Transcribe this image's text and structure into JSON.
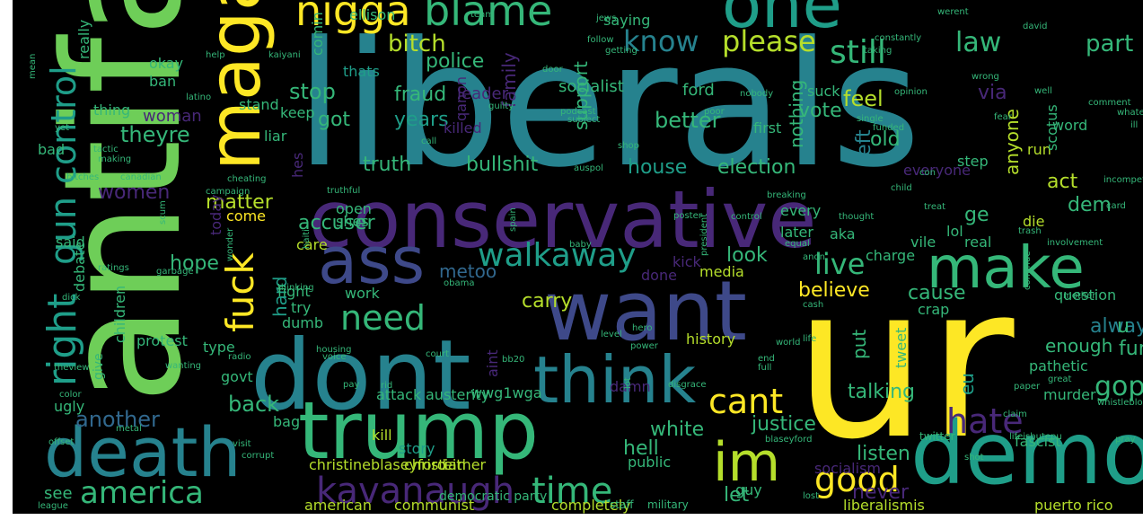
{
  "title": "",
  "palette": {
    "background": "#000000",
    "yellow": "#fde725",
    "lime": "#b5de2b",
    "green": "#6ece58",
    "teal_green": "#35b779",
    "teal": "#1f9e89",
    "cyan_blue": "#26828e",
    "blue": "#31688e",
    "indigo": "#3e4989",
    "purple": "#482878",
    "dark_purple": "#440154"
  },
  "words": [
    {
      "text": "liberals",
      "color": "#26828e"
    },
    {
      "text": "ur",
      "color": "#fde725"
    },
    {
      "text": "antifa",
      "color": "#6ece58"
    },
    {
      "text": "conservative",
      "color": "#482878"
    },
    {
      "text": "dont",
      "color": "#26828e"
    },
    {
      "text": "trump",
      "color": "#35b779"
    },
    {
      "text": "want",
      "color": "#3e4989"
    },
    {
      "text": "death",
      "color": "#26828e"
    },
    {
      "text": "democ",
      "color": "#1f9e89"
    },
    {
      "text": "maga",
      "color": "#fde725"
    },
    {
      "text": "think",
      "color": "#26828e"
    },
    {
      "text": "make",
      "color": "#35b779"
    },
    {
      "text": "ass",
      "color": "#3e4989"
    },
    {
      "text": "one",
      "color": "#1f9e89"
    },
    {
      "text": "im",
      "color": "#b5de2b"
    },
    {
      "text": "nigga",
      "color": "#fde725"
    },
    {
      "text": "blame",
      "color": "#35b779"
    },
    {
      "text": "right",
      "color": "#1f9e89"
    },
    {
      "text": "gun",
      "color": "#1f9e89"
    },
    {
      "text": "control",
      "color": "#1f9e89"
    },
    {
      "text": "fuck",
      "color": "#fde725"
    },
    {
      "text": "kavanaugh",
      "color": "#482878"
    },
    {
      "text": "time",
      "color": "#35b779"
    },
    {
      "text": "america",
      "color": "#35b779"
    },
    {
      "text": "good",
      "color": "#fde725"
    },
    {
      "text": "need",
      "color": "#35b779"
    },
    {
      "text": "walkaway",
      "color": "#1f9e89"
    },
    {
      "text": "cant",
      "color": "#fde725"
    },
    {
      "text": "hate",
      "color": "#482878"
    },
    {
      "text": "live",
      "color": "#35b779"
    },
    {
      "text": "know",
      "color": "#26828e"
    },
    {
      "text": "please",
      "color": "#b5de2b"
    },
    {
      "text": "still",
      "color": "#35b779"
    },
    {
      "text": "law",
      "color": "#35b779"
    },
    {
      "text": "part",
      "color": "#35b779"
    },
    {
      "text": "bitch",
      "color": "#b5de2b"
    },
    {
      "text": "police",
      "color": "#35b779"
    },
    {
      "text": "better",
      "color": "#35b779"
    },
    {
      "text": "stop",
      "color": "#35b779"
    },
    {
      "text": "fraud",
      "color": "#35b779"
    },
    {
      "text": "years",
      "color": "#1f9e89"
    },
    {
      "text": "got",
      "color": "#35b779"
    },
    {
      "text": "feel",
      "color": "#b5de2b"
    },
    {
      "text": "truth",
      "color": "#35b779"
    },
    {
      "text": "bullshit",
      "color": "#35b779"
    },
    {
      "text": "house",
      "color": "#1f9e89"
    },
    {
      "text": "election",
      "color": "#35b779"
    },
    {
      "text": "theyre",
      "color": "#35b779"
    },
    {
      "text": "women",
      "color": "#482878"
    },
    {
      "text": "matter",
      "color": "#b5de2b"
    },
    {
      "text": "accuser",
      "color": "#35b779"
    },
    {
      "text": "hope",
      "color": "#35b779"
    },
    {
      "text": "hard",
      "color": "#1f9e89"
    },
    {
      "text": "look",
      "color": "#35b779"
    },
    {
      "text": "metoo",
      "color": "#31688e"
    },
    {
      "text": "carry",
      "color": "#b5de2b"
    },
    {
      "text": "believe",
      "color": "#fde725"
    },
    {
      "text": "cause",
      "color": "#35b779"
    },
    {
      "text": "back",
      "color": "#35b779"
    },
    {
      "text": "another",
      "color": "#31688e"
    },
    {
      "text": "white",
      "color": "#35b779"
    },
    {
      "text": "justice",
      "color": "#35b779"
    },
    {
      "text": "hell",
      "color": "#35b779"
    },
    {
      "text": "listen",
      "color": "#35b779"
    },
    {
      "text": "never",
      "color": "#482878"
    },
    {
      "text": "let",
      "color": "#35b779"
    },
    {
      "text": "see",
      "color": "#35b779"
    },
    {
      "text": "american",
      "color": "#b5de2b"
    },
    {
      "text": "communist",
      "color": "#b5de2b"
    },
    {
      "text": "completely",
      "color": "#b5de2b"
    },
    {
      "text": "puerto rico",
      "color": "#b5de2b"
    },
    {
      "text": "liberalismis",
      "color": "#b5de2b"
    },
    {
      "text": "christineblaseyford",
      "color": "#b5de2b"
    },
    {
      "text": "christian",
      "color": "#b5de2b"
    },
    {
      "text": "either",
      "color": "#b5de2b"
    },
    {
      "text": "kill",
      "color": "#b5de2b"
    },
    {
      "text": "story",
      "color": "#1f9e89"
    },
    {
      "text": "eu",
      "color": "#1f9e89"
    },
    {
      "text": "talking",
      "color": "#35b779"
    },
    {
      "text": "put",
      "color": "#35b779"
    },
    {
      "text": "enough",
      "color": "#35b779"
    },
    {
      "text": "always",
      "color": "#26828e"
    },
    {
      "text": "gop",
      "color": "#35b779"
    },
    {
      "text": "u",
      "color": "#35b779"
    },
    {
      "text": "fun",
      "color": "#35b779"
    },
    {
      "text": "ge",
      "color": "#35b779"
    },
    {
      "text": "dem",
      "color": "#35b779"
    },
    {
      "text": "act",
      "color": "#b5de2b"
    },
    {
      "text": "die",
      "color": "#b5de2b"
    },
    {
      "text": "run",
      "color": "#b5de2b"
    },
    {
      "text": "vote",
      "color": "#35b779"
    },
    {
      "text": "via",
      "color": "#482878"
    },
    {
      "text": "old",
      "color": "#35b779"
    },
    {
      "text": "left",
      "color": "#26828e"
    },
    {
      "text": "nothing",
      "color": "#35b779"
    },
    {
      "text": "anyone",
      "color": "#b5de2b"
    },
    {
      "text": "support",
      "color": "#35b779"
    },
    {
      "text": "family",
      "color": "#482878"
    },
    {
      "text": "socialist",
      "color": "#35b779"
    },
    {
      "text": "ford",
      "color": "#35b779"
    },
    {
      "text": "leader",
      "color": "#482878"
    },
    {
      "text": "woman",
      "color": "#482878"
    },
    {
      "text": "okay",
      "color": "#35b779"
    },
    {
      "text": "ban",
      "color": "#35b779"
    },
    {
      "text": "really",
      "color": "#35b779"
    },
    {
      "text": "thats",
      "color": "#1f9e89"
    },
    {
      "text": "stand",
      "color": "#35b779"
    },
    {
      "text": "comin",
      "color": "#35b779"
    },
    {
      "text": "saying",
      "color": "#35b779"
    },
    {
      "text": "ellison",
      "color": "#35b779"
    },
    {
      "text": "thing",
      "color": "#35b779"
    },
    {
      "text": "bad",
      "color": "#35b779"
    },
    {
      "text": "liar",
      "color": "#35b779"
    },
    {
      "text": "keep",
      "color": "#35b779"
    },
    {
      "text": "killed",
      "color": "#482878"
    },
    {
      "text": "qanon",
      "color": "#482878"
    },
    {
      "text": "first",
      "color": "#35b779"
    },
    {
      "text": "suck",
      "color": "#35b779"
    },
    {
      "text": "scotus",
      "color": "#35b779"
    },
    {
      "text": "word",
      "color": "#35b779"
    },
    {
      "text": "everyone",
      "color": "#482878"
    },
    {
      "text": "step",
      "color": "#35b779"
    },
    {
      "text": "come",
      "color": "#fde725"
    },
    {
      "text": "today",
      "color": "#482878"
    },
    {
      "text": "care",
      "color": "#b5de2b"
    },
    {
      "text": "said",
      "color": "#35b779"
    },
    {
      "text": "open",
      "color": "#35b779"
    },
    {
      "text": "shes",
      "color": "#35b779"
    },
    {
      "text": "every",
      "color": "#35b779"
    },
    {
      "text": "later",
      "color": "#35b779"
    },
    {
      "text": "aka",
      "color": "#35b779"
    },
    {
      "text": "lol",
      "color": "#35b779"
    },
    {
      "text": "charge",
      "color": "#35b779"
    },
    {
      "text": "vile",
      "color": "#35b779"
    },
    {
      "text": "real",
      "color": "#35b779"
    },
    {
      "text": "media",
      "color": "#b5de2b"
    },
    {
      "text": "done",
      "color": "#482878"
    },
    {
      "text": "kick",
      "color": "#482878"
    },
    {
      "text": "work",
      "color": "#35b779"
    },
    {
      "text": "fight",
      "color": "#35b779"
    },
    {
      "text": "try",
      "color": "#35b779"
    },
    {
      "text": "dumb",
      "color": "#35b779"
    },
    {
      "text": "protest",
      "color": "#35b779"
    },
    {
      "text": "type",
      "color": "#35b779"
    },
    {
      "text": "history",
      "color": "#b5de2b"
    },
    {
      "text": "tweet",
      "color": "#35b779"
    },
    {
      "text": "crap",
      "color": "#35b779"
    },
    {
      "text": "question",
      "color": "#35b779"
    },
    {
      "text": "pathetic",
      "color": "#35b779"
    },
    {
      "text": "murder",
      "color": "#35b779"
    },
    {
      "text": "fascist",
      "color": "#35b779"
    },
    {
      "text": "govt",
      "color": "#35b779"
    },
    {
      "text": "bag",
      "color": "#35b779"
    },
    {
      "text": "attack",
      "color": "#35b779"
    },
    {
      "text": "austerity",
      "color": "#35b779"
    },
    {
      "text": "wwg1wga",
      "color": "#35b779"
    },
    {
      "text": "damn",
      "color": "#482878"
    },
    {
      "text": "aint",
      "color": "#482878"
    },
    {
      "text": "ugly",
      "color": "#35b779"
    },
    {
      "text": "children",
      "color": "#35b779"
    },
    {
      "text": "debate",
      "color": "#35b779"
    },
    {
      "text": "give",
      "color": "#35b779"
    },
    {
      "text": "hes",
      "color": "#482878"
    },
    {
      "text": "public",
      "color": "#35b779"
    },
    {
      "text": "socialism",
      "color": "#482878"
    },
    {
      "text": "guy",
      "color": "#35b779"
    },
    {
      "text": "democratic party",
      "color": "#35b779"
    },
    {
      "text": "staff",
      "color": "#35b779"
    },
    {
      "text": "military",
      "color": "#35b779"
    },
    {
      "text": "league",
      "color": "#35b779"
    },
    {
      "text": "twitter",
      "color": "#35b779"
    },
    {
      "text": "blaseyford",
      "color": "#35b779"
    },
    {
      "text": "involvement",
      "color": "#35b779"
    },
    {
      "text": "cash",
      "color": "#35b779"
    },
    {
      "text": "end",
      "color": "#35b779"
    },
    {
      "text": "full",
      "color": "#35b779"
    },
    {
      "text": "hero",
      "color": "#35b779"
    },
    {
      "text": "level",
      "color": "#35b779"
    },
    {
      "text": "life",
      "color": "#35b779"
    },
    {
      "text": "world",
      "color": "#35b779"
    },
    {
      "text": "radio",
      "color": "#35b779"
    },
    {
      "text": "color",
      "color": "#35b779"
    },
    {
      "text": "theview",
      "color": "#35b779"
    },
    {
      "text": "wanting",
      "color": "#35b779"
    },
    {
      "text": "ratings",
      "color": "#35b779"
    },
    {
      "text": "garbage",
      "color": "#35b779"
    },
    {
      "text": "dick",
      "color": "#35b779"
    },
    {
      "text": "tactic",
      "color": "#35b779"
    },
    {
      "text": "making",
      "color": "#35b779"
    },
    {
      "text": "bitches",
      "color": "#35b779"
    },
    {
      "text": "cheating",
      "color": "#35b779"
    },
    {
      "text": "canadian",
      "color": "#35b779"
    },
    {
      "text": "campaign",
      "color": "#35b779"
    },
    {
      "text": "scum",
      "color": "#35b779"
    },
    {
      "text": "president",
      "color": "#35b779"
    },
    {
      "text": "breaking",
      "color": "#35b779"
    },
    {
      "text": "control",
      "color": "#35b779"
    },
    {
      "text": "poster",
      "color": "#35b779"
    },
    {
      "text": "spain",
      "color": "#35b779"
    },
    {
      "text": "truthful",
      "color": "#35b779"
    },
    {
      "text": "auspol",
      "color": "#35b779"
    },
    {
      "text": "shop",
      "color": "#35b779"
    },
    {
      "text": "call",
      "color": "#35b779"
    },
    {
      "text": "podcast",
      "color": "#35b779"
    },
    {
      "text": "subject",
      "color": "#35b779"
    },
    {
      "text": "guilty",
      "color": "#35b779"
    },
    {
      "text": "single",
      "color": "#35b779"
    },
    {
      "text": "funded",
      "color": "#35b779"
    },
    {
      "text": "poor",
      "color": "#35b779"
    },
    {
      "text": "opinion",
      "color": "#35b779"
    },
    {
      "text": "nobody",
      "color": "#35b779"
    },
    {
      "text": "taking",
      "color": "#35b779"
    },
    {
      "text": "getting",
      "color": "#35b779"
    },
    {
      "text": "jews",
      "color": "#35b779"
    },
    {
      "text": "follow",
      "color": "#35b779"
    },
    {
      "text": "door",
      "color": "#35b779"
    },
    {
      "text": "mean",
      "color": "#35b779"
    },
    {
      "text": "team",
      "color": "#35b779"
    },
    {
      "text": "constantly",
      "color": "#35b779"
    },
    {
      "text": "werent",
      "color": "#35b779"
    },
    {
      "text": "wrong",
      "color": "#35b779"
    },
    {
      "text": "incompetent",
      "color": "#35b779"
    },
    {
      "text": "thought",
      "color": "#35b779"
    },
    {
      "text": "treat",
      "color": "#35b779"
    },
    {
      "text": "card",
      "color": "#35b779"
    },
    {
      "text": "con",
      "color": "#35b779"
    },
    {
      "text": "child",
      "color": "#35b779"
    },
    {
      "text": "equal",
      "color": "#35b779"
    },
    {
      "text": "anon",
      "color": "#35b779"
    },
    {
      "text": "baby",
      "color": "#35b779"
    },
    {
      "text": "obama",
      "color": "#35b779"
    },
    {
      "text": "power",
      "color": "#35b779"
    },
    {
      "text": "court",
      "color": "#35b779"
    },
    {
      "text": "thinking",
      "color": "#35b779"
    },
    {
      "text": "haiti",
      "color": "#35b779"
    },
    {
      "text": "housing",
      "color": "#35b779"
    },
    {
      "text": "voice",
      "color": "#35b779"
    },
    {
      "text": "pay",
      "color": "#35b779"
    },
    {
      "text": "rid",
      "color": "#35b779"
    },
    {
      "text": "bb20",
      "color": "#35b779"
    },
    {
      "text": "disgrace",
      "color": "#35b779"
    },
    {
      "text": "lot",
      "color": "#35b779"
    },
    {
      "text": "great",
      "color": "#35b779"
    },
    {
      "text": "whistleblowers",
      "color": "#35b779"
    },
    {
      "text": "lifeisbutepu",
      "color": "#35b779"
    },
    {
      "text": "pray",
      "color": "#35b779"
    },
    {
      "text": "claim",
      "color": "#35b779"
    },
    {
      "text": "paper",
      "color": "#35b779"
    },
    {
      "text": "mother",
      "color": "#35b779"
    },
    {
      "text": "visit",
      "color": "#35b779"
    },
    {
      "text": "corrupt",
      "color": "#35b779"
    },
    {
      "text": "shot",
      "color": "#35b779"
    },
    {
      "text": "lost",
      "color": "#35b779"
    },
    {
      "text": "trash",
      "color": "#35b779"
    },
    {
      "text": "offset",
      "color": "#35b779"
    },
    {
      "text": "metal",
      "color": "#35b779"
    },
    {
      "text": "help",
      "color": "#35b779"
    },
    {
      "text": "kaiyani",
      "color": "#35b779"
    },
    {
      "text": "latino",
      "color": "#35b779"
    },
    {
      "text": "yet",
      "color": "#35b779"
    },
    {
      "text": "wonder",
      "color": "#35b779"
    },
    {
      "text": "continue",
      "color": "#35b779"
    },
    {
      "text": "comment",
      "color": "#35b779"
    },
    {
      "text": "whatever",
      "color": "#35b779"
    },
    {
      "text": "ill",
      "color": "#35b779"
    },
    {
      "text": "fear",
      "color": "#35b779"
    },
    {
      "text": "well",
      "color": "#35b779"
    },
    {
      "text": "david",
      "color": "#35b779"
    },
    {
      "text": "near",
      "color": "#35b779"
    },
    {
      "text": "side",
      "color": "#35b779"
    },
    {
      "text": "made",
      "color": "#35b779"
    },
    {
      "text": "talk",
      "color": "#35b779"
    }
  ]
}
